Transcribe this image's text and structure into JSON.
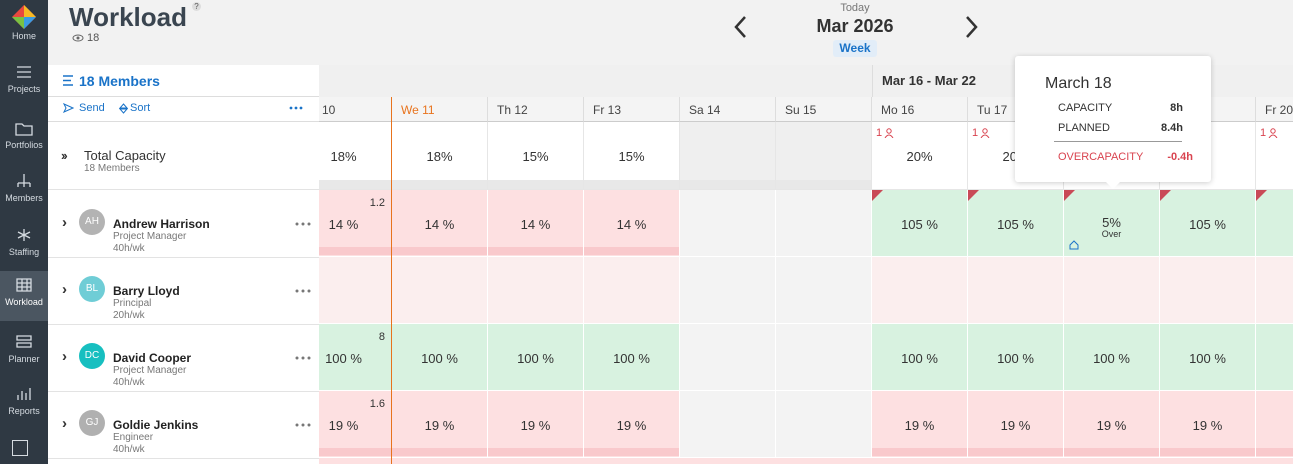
{
  "sidebar": [
    "Home",
    "Projects",
    "Portfolios",
    "Members",
    "Staffing",
    "Workload",
    "Planner",
    "Reports"
  ],
  "header": {
    "title": "Workload",
    "help": "?",
    "viewers": "18",
    "today": "Today",
    "period": "Mar 2026",
    "mode": "Week"
  },
  "toolbar": {
    "members": "18 Members",
    "send": "Send",
    "sort": "Sort"
  },
  "week_label": "Mar 16 - Mar 22",
  "days": [
    "10",
    "We 11",
    "Th 12",
    "Fr 13",
    "Sa 14",
    "Su 15",
    "Mo 16",
    "Tu 17",
    null,
    null,
    "Fr 20"
  ],
  "weekend": [
    false,
    false,
    false,
    false,
    true,
    true,
    false,
    false,
    false,
    false,
    false
  ],
  "total": {
    "label": "Total Capacity",
    "sub": "18 Members",
    "cells": [
      "18%",
      "18%",
      "15%",
      "15%",
      null,
      null,
      "20%",
      "20%",
      null,
      null,
      null
    ],
    "flags": [
      null,
      null,
      null,
      null,
      null,
      null,
      "1",
      "1",
      null,
      null,
      "1"
    ]
  },
  "members": [
    {
      "initials": "AH",
      "color": "#b3b3b3",
      "name": "Andrew Harrison",
      "role": "Project Manager",
      "hours": "40h/wk",
      "note": "1.2",
      "cells": [
        "14 %",
        "14 %",
        "14 %",
        "14 %",
        null,
        null,
        "105 %",
        "105 %",
        "5%",
        "105 %",
        null
      ],
      "status": [
        "under",
        "under",
        "under",
        "under",
        "off",
        "off",
        "over",
        "over",
        "over",
        "over",
        "over"
      ],
      "cell_sub": {
        "8": "Over"
      }
    },
    {
      "initials": "BL",
      "color": "#6fcdd6",
      "name": "Barry Lloyd",
      "role": "Principal",
      "hours": "20h/wk",
      "note": null,
      "cells": [
        null,
        null,
        null,
        null,
        null,
        null,
        null,
        null,
        null,
        null,
        null
      ],
      "status": [
        "empty",
        "empty",
        "empty",
        "empty",
        "off",
        "off",
        "empty",
        "empty",
        "empty",
        "empty",
        "empty"
      ],
      "cell_sub": {}
    },
    {
      "initials": "DC",
      "color": "#17bfc0",
      "name": "David Cooper",
      "role": "Project Manager",
      "hours": "40h/wk",
      "note": "8",
      "cells": [
        "100 %",
        "100 %",
        "100 %",
        "100 %",
        null,
        null,
        "100 %",
        "100 %",
        "100 %",
        "100 %",
        null
      ],
      "status": [
        "full",
        "full",
        "full",
        "full",
        "off",
        "off",
        "full",
        "full",
        "full",
        "full",
        "full"
      ],
      "cell_sub": {}
    },
    {
      "initials": "GJ",
      "color": "#b0b0b0",
      "name": "Goldie Jenkins",
      "role": "Engineer",
      "hours": "40h/wk",
      "note": "1.6",
      "cells": [
        "19 %",
        "19 %",
        "19 %",
        "19 %",
        null,
        null,
        "19 %",
        "19 %",
        "19 %",
        "19 %",
        null
      ],
      "status": [
        "under",
        "under",
        "under",
        "under",
        "off",
        "off",
        "under",
        "under",
        "under",
        "under",
        "under"
      ],
      "cell_sub": {}
    }
  ],
  "tooltip": {
    "title": "March 18",
    "rows": [
      [
        "CAPACITY",
        "8h"
      ],
      [
        "PLANNED",
        "8.4h"
      ]
    ],
    "over": [
      "OVERCAPACITY",
      "-0.4h"
    ]
  }
}
